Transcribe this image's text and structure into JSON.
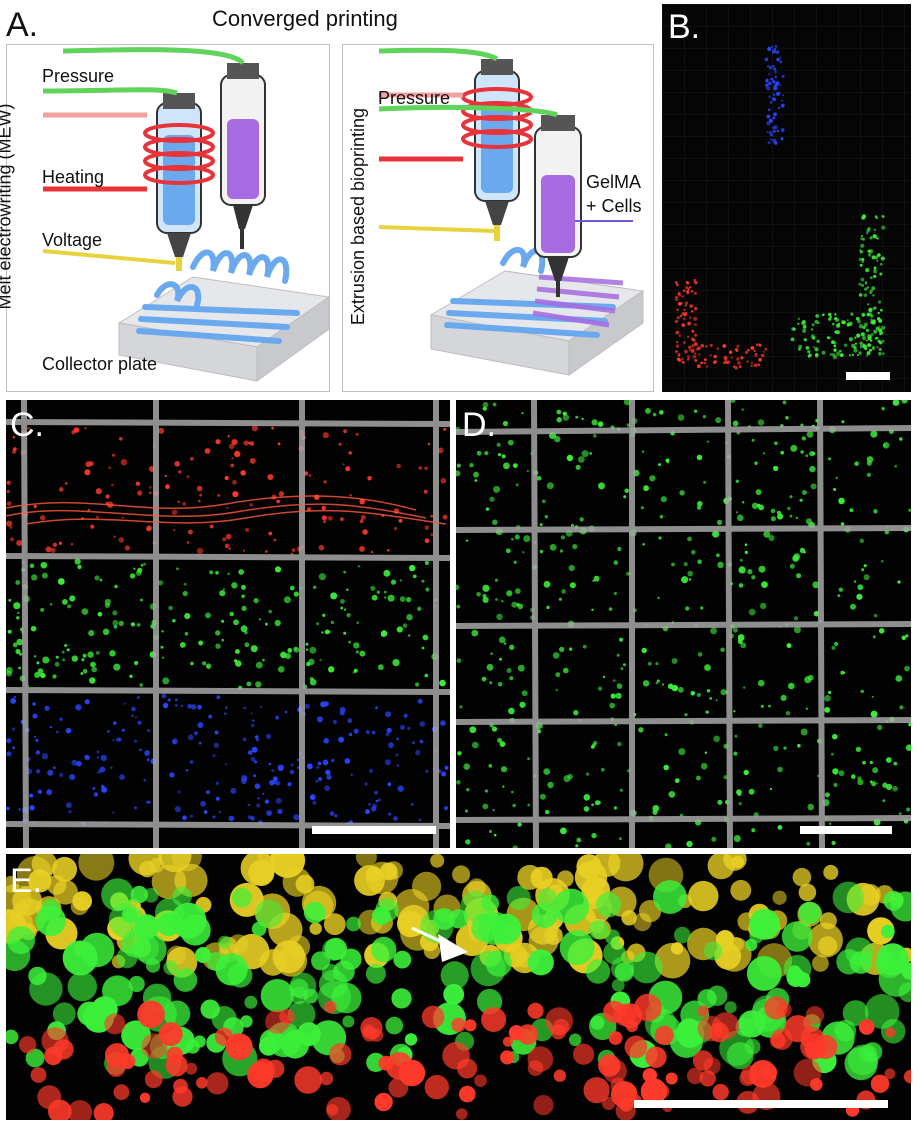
{
  "figure": {
    "panel_a": {
      "letter": "A.",
      "title": "Converged printing",
      "left": {
        "vertical_label": "Melt electrowriting (MEW)",
        "pressure": "Pressure",
        "heating": "Heating",
        "voltage": "Voltage",
        "collector": "Collector plate"
      },
      "right": {
        "vertical_label": "Extrusion based bioprinting",
        "pressure": "Pressure",
        "gelma_line1": "GelMA",
        "gelma_line2": "+ Cells"
      }
    },
    "panel_b": {
      "letter": "B."
    },
    "panel_c": {
      "letter": "C."
    },
    "panel_d": {
      "letter": "D."
    },
    "panel_e": {
      "letter": "E."
    }
  },
  "colors": {
    "pressure_tube": "#5fd35a",
    "heating_coil": "#e8333a",
    "voltage_wire": "#e6d23c",
    "scaffold": "#6aa9ee",
    "bioink": "#a66be0",
    "fluor_red": "#ff3a2a",
    "fluor_green": "#3cf03a",
    "fluor_blue": "#2a46ff",
    "fluor_yellow": "#e8cf24",
    "grid_fiber": "#9a9a9a"
  }
}
